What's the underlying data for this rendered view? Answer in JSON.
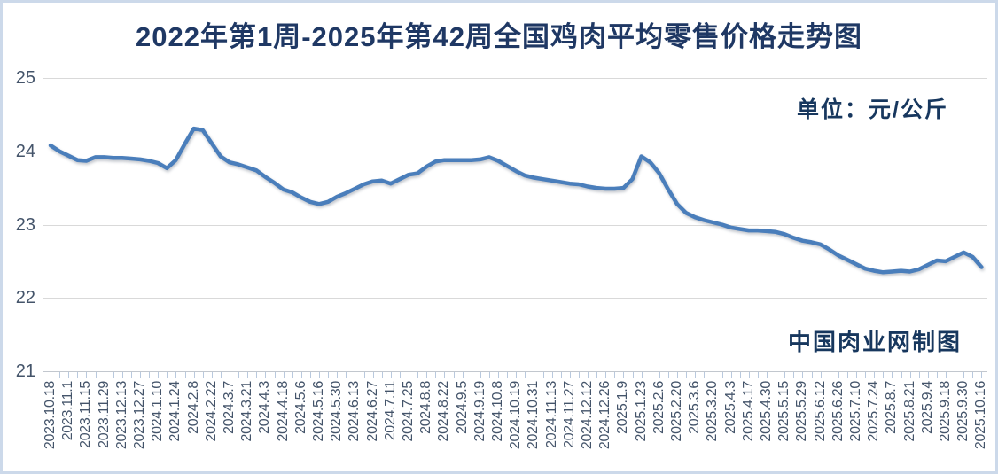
{
  "title": "2022年第1周-2025年第42周全国鸡肉平均零售价格走势图",
  "unit_label": "单位：元/公斤",
  "watermark": "中国肉业网制图",
  "colors": {
    "line": "#4a7ebb",
    "title_text": "#1f3864",
    "axis_text": "#44546a",
    "gridline": "#d9d9d9",
    "border": "#ccd9ea"
  },
  "chart_data": {
    "type": "line",
    "title": "2022年第1周-2025年第42周全国鸡肉平均零售价格走势图",
    "unit": "元/公斤",
    "xlabel": "",
    "ylabel": "",
    "ylim": [
      21,
      25
    ],
    "yticks": [
      25,
      24,
      23,
      22,
      21
    ],
    "grid": "horizontal",
    "legend": "none",
    "x_label_every_n_points": 2,
    "x_labels": [
      "2023.10.18",
      "2023.11.1",
      "2023.11.15",
      "2023.11.29",
      "2023.12.13",
      "2023.12.27",
      "2024.1.10",
      "2024.1.24",
      "2024.2.8",
      "2024.2.22",
      "2024.3.7",
      "2024.3.21",
      "2024.4.3",
      "2024.4.18",
      "2024.5.6",
      "2024.5.16",
      "2024.5.30",
      "2024.6.13",
      "2024.6.27",
      "2024.7.11",
      "2024.7.25",
      "2024.8.8",
      "2024.8.22",
      "2024.9.5",
      "2024.9.19",
      "2024.10.8",
      "2024.10.19",
      "2024.10.31",
      "2024.11.13",
      "2024.11.27",
      "2024.12.12",
      "2024.12.26",
      "2025.1.9",
      "2025.1.23",
      "2025.2.6",
      "2025.2.20",
      "2025.3.6",
      "2025.3.20",
      "2025.4.3",
      "2025.4.17",
      "2025.4.30",
      "2025.5.15",
      "2025.5.29",
      "2025.6.12",
      "2025.6.26",
      "2025.7.10",
      "2025.7.24",
      "2025.8.7",
      "2025.8.21",
      "2025.9.4",
      "2025.9.18",
      "2025.9.30",
      "2025.10.16"
    ],
    "values": [
      24.08,
      24.0,
      23.94,
      23.88,
      23.87,
      23.92,
      23.92,
      23.91,
      23.91,
      23.9,
      23.89,
      23.87,
      23.84,
      23.77,
      23.88,
      24.1,
      24.31,
      24.29,
      24.11,
      23.93,
      23.85,
      23.82,
      23.78,
      23.74,
      23.65,
      23.57,
      23.48,
      23.44,
      23.37,
      23.31,
      23.28,
      23.31,
      23.38,
      23.43,
      23.49,
      23.55,
      23.59,
      23.6,
      23.56,
      23.62,
      23.68,
      23.7,
      23.79,
      23.86,
      23.88,
      23.88,
      23.88,
      23.88,
      23.89,
      23.92,
      23.87,
      23.8,
      23.73,
      23.67,
      23.64,
      23.62,
      23.6,
      23.58,
      23.56,
      23.55,
      23.52,
      23.5,
      23.49,
      23.49,
      23.5,
      23.62,
      23.93,
      23.85,
      23.7,
      23.48,
      23.28,
      23.16,
      23.1,
      23.06,
      23.03,
      23.0,
      22.96,
      22.94,
      22.92,
      22.92,
      22.91,
      22.9,
      22.87,
      22.82,
      22.78,
      22.76,
      22.73,
      22.66,
      22.58,
      22.52,
      22.46,
      22.4,
      22.37,
      22.35,
      22.36,
      22.37,
      22.36,
      22.39,
      22.45,
      22.51,
      22.5,
      22.56,
      22.62,
      22.56,
      22.42
    ]
  }
}
